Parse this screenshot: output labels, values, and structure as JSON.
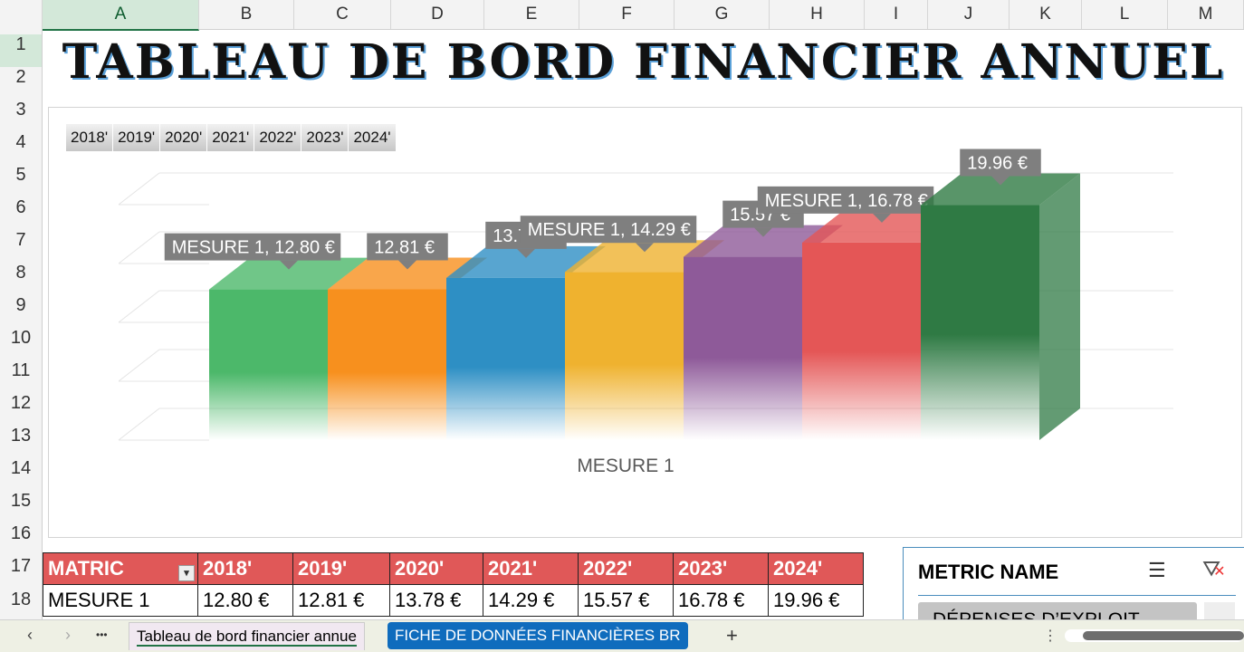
{
  "columns": [
    "A",
    "B",
    "C",
    "D",
    "E",
    "F",
    "G",
    "H",
    "I",
    "J",
    "K",
    "L",
    "M"
  ],
  "rows": [
    "1",
    "2",
    "3",
    "4",
    "5",
    "6",
    "7",
    "8",
    "9",
    "10",
    "11",
    "12",
    "13",
    "14",
    "15",
    "16",
    "17",
    "18"
  ],
  "title": "TABLEAU DE BORD FINANCIER ANNUEL",
  "year_buttons": [
    "2018'",
    "2019'",
    "2020'",
    "2021'",
    "2022'",
    "2023'",
    "2024'"
  ],
  "chart_data": {
    "type": "bar",
    "categories": [
      "2018'",
      "2019'",
      "2020'",
      "2021'",
      "2022'",
      "2023'",
      "2024'"
    ],
    "series": [
      {
        "name": "MESURE 1",
        "values": [
          12.8,
          12.81,
          13.78,
          14.29,
          15.57,
          16.78,
          19.96
        ]
      }
    ],
    "data_labels": [
      "MESURE 1, 12.80 €",
      "12.81 €",
      "13.78 €",
      "MESURE 1, 14.29 €",
      "15.57 €",
      "MESURE 1, 16.78 €",
      "19.96 €"
    ],
    "colors": [
      "#4cb86a",
      "#f7901e",
      "#2e8fc4",
      "#efb22f",
      "#8e5a99",
      "#e45656",
      "#2f7a44"
    ],
    "xlabel": "MESURE 1",
    "grid": true
  },
  "table": {
    "headers": [
      "MATRIC",
      "2018'",
      "2019'",
      "2020'",
      "2021'",
      "2022'",
      "2023'",
      "2024'"
    ],
    "rows": [
      [
        "MESURE 1",
        "12.80 €",
        "12.81 €",
        "13.78 €",
        "14.29 €",
        "15.57 €",
        "16.78 €",
        "19.96 €"
      ]
    ]
  },
  "slicer": {
    "title": "METRIC NAME",
    "item": "DÉPENSES D’EXPLOIT"
  },
  "sheet_tabs": {
    "active": "Tableau de bord financier annue",
    "other": "FICHE DE DONNÉES FINANCIÈRES BR",
    "add": "+",
    "more": "•••"
  },
  "colors": {
    "header_red": "#e05858",
    "tab_blue": "#0f6cbd"
  }
}
